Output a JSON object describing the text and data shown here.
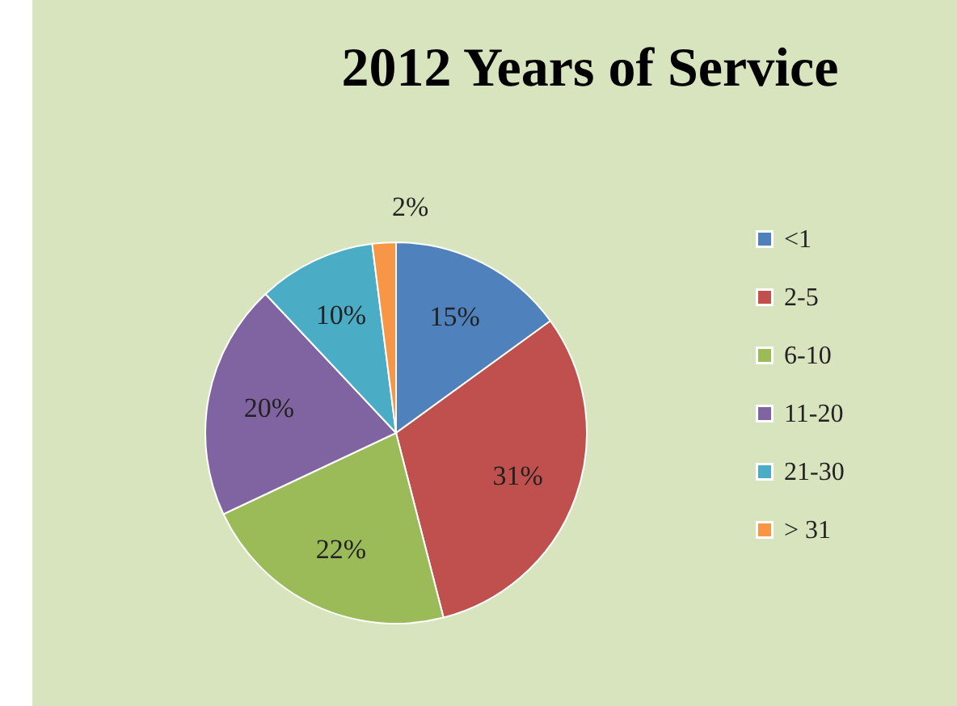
{
  "chart_data": {
    "type": "pie",
    "title": "2012 Years of Service",
    "categories": [
      "<1",
      "2-5",
      "6-10",
      "11-20",
      "21-30",
      "> 31"
    ],
    "values": [
      15,
      31,
      22,
      20,
      10,
      2
    ],
    "colors": [
      "#4f81bd",
      "#c0504d",
      "#9bbb59",
      "#8064a2",
      "#4bacc6",
      "#f79646"
    ],
    "value_labels": [
      "15%",
      "31%",
      "22%",
      "20%",
      "10%",
      "2%"
    ],
    "legend": "right"
  }
}
